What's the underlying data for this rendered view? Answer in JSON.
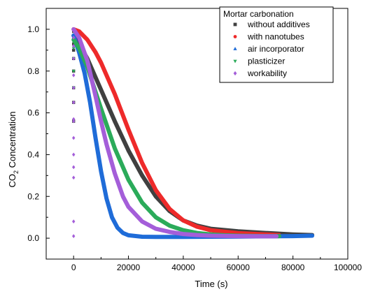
{
  "chart_data": {
    "type": "scatter",
    "title": "",
    "xlabel": "Time (s)",
    "ylabel_main": "CO",
    "ylabel_sub": "2",
    "ylabel_rest": " Concentration",
    "xlim": [
      -10000,
      100000
    ],
    "ylim": [
      -0.1,
      1.1
    ],
    "xticks": [
      0,
      20000,
      40000,
      60000,
      80000,
      100000
    ],
    "xtick_labels": [
      "0",
      "20000",
      "40000",
      "60000",
      "80000",
      "100000"
    ],
    "yticks": [
      0.0,
      0.2,
      0.4,
      0.6,
      0.8,
      1.0
    ],
    "ytick_labels": [
      "0.0",
      "0.2",
      "0.4",
      "0.6",
      "0.8",
      "1.0"
    ],
    "grid": false,
    "legend": {
      "title": "Mortar carbonation",
      "placement": "top-right"
    },
    "series": [
      {
        "name": "without additives",
        "color": "#404040",
        "marker": "square",
        "x": [
          0,
          2000,
          5000,
          8000,
          10000,
          15000,
          20000,
          25000,
          30000,
          35000,
          40000,
          45000,
          50000,
          60000,
          70000,
          80000,
          87000
        ],
        "y": [
          0.97,
          0.93,
          0.86,
          0.77,
          0.71,
          0.56,
          0.42,
          0.3,
          0.2,
          0.13,
          0.085,
          0.06,
          0.045,
          0.033,
          0.025,
          0.018,
          0.015
        ],
        "y_at_zero_scatter": [
          0.56,
          0.65,
          0.72,
          0.8,
          0.86,
          0.9,
          0.93,
          0.96,
          0.99
        ]
      },
      {
        "name": "with nanotubes",
        "color": "#ee2a2a",
        "marker": "circle",
        "x": [
          0,
          2000,
          5000,
          8000,
          10000,
          15000,
          20000,
          25000,
          30000,
          35000,
          40000,
          45000,
          50000,
          60000,
          70000,
          75000
        ],
        "y": [
          1.0,
          0.99,
          0.95,
          0.89,
          0.84,
          0.69,
          0.52,
          0.36,
          0.23,
          0.14,
          0.085,
          0.055,
          0.038,
          0.024,
          0.018,
          0.015
        ]
      },
      {
        "name": "air incorporator",
        "color": "#1f6cd8",
        "marker": "triangle-up",
        "x": [
          0,
          1000,
          2000,
          4000,
          6000,
          8000,
          10000,
          12000,
          14000,
          16000,
          18000,
          20000,
          25000,
          30000,
          40000,
          50000,
          60000,
          70000,
          80000,
          87000
        ],
        "y": [
          0.97,
          0.93,
          0.89,
          0.79,
          0.65,
          0.48,
          0.32,
          0.19,
          0.1,
          0.05,
          0.025,
          0.014,
          0.007,
          0.006,
          0.006,
          0.007,
          0.008,
          0.009,
          0.01,
          0.012
        ]
      },
      {
        "name": "plasticizer",
        "color": "#2bab5a",
        "marker": "triangle-down",
        "x": [
          0,
          2000,
          5000,
          8000,
          10000,
          15000,
          20000,
          25000,
          30000,
          35000,
          40000,
          45000,
          50000,
          55000,
          60000,
          70000,
          75000
        ],
        "y": [
          0.95,
          0.91,
          0.82,
          0.7,
          0.62,
          0.43,
          0.28,
          0.17,
          0.1,
          0.06,
          0.038,
          0.025,
          0.018,
          0.014,
          0.012,
          0.01,
          0.01
        ],
        "y_at_zero_scatter": [
          0.72,
          0.8,
          0.86,
          0.91,
          0.95
        ]
      },
      {
        "name": "workability",
        "color": "#a45ed9",
        "marker": "diamond",
        "x": [
          0,
          2000,
          5000,
          8000,
          10000,
          12000,
          15000,
          18000,
          20000,
          25000,
          30000,
          35000,
          40000,
          45000,
          50000,
          60000,
          70000,
          74000
        ],
        "y": [
          1.0,
          0.96,
          0.85,
          0.68,
          0.56,
          0.45,
          0.31,
          0.2,
          0.15,
          0.08,
          0.045,
          0.03,
          0.02,
          0.015,
          0.012,
          0.01,
          0.009,
          0.009
        ],
        "y_at_zero_scatter": [
          0.01,
          0.08,
          0.29,
          0.34,
          0.4,
          0.48,
          0.56,
          0.57,
          0.65,
          0.72,
          0.78,
          0.86,
          0.92,
          0.96
        ]
      }
    ]
  }
}
